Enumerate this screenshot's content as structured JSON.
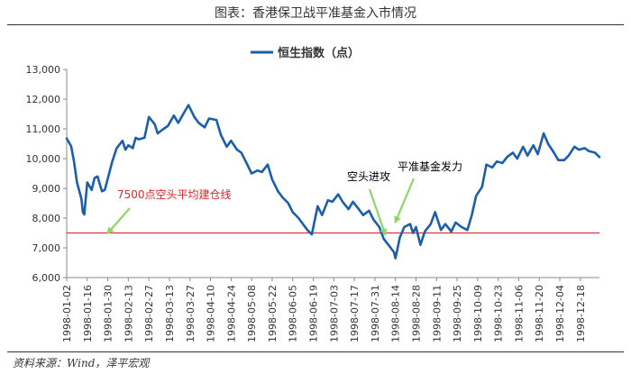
{
  "figure_title": "图表：香港保卫战平准基金入市情况",
  "source": "资料来源：Wind，泽平宏观",
  "chart_data": {
    "type": "line",
    "title": "",
    "xlabel": "",
    "ylabel": "",
    "ylim": [
      6000,
      13000
    ],
    "yticks": [
      6000,
      7000,
      8000,
      9000,
      10000,
      11000,
      12000,
      13000
    ],
    "ytick_labels": [
      "6,000",
      "7,000",
      "8,000",
      "9,000",
      "10,000",
      "11,000",
      "12,000",
      "13,000"
    ],
    "xlim": [
      "1998-01-02",
      "1998-12-31"
    ],
    "xticks": [
      "1998-01-02",
      "1998-01-16",
      "1998-01-30",
      "1998-02-13",
      "1998-02-27",
      "1998-03-13",
      "1998-03-27",
      "1998-04-10",
      "1998-04-24",
      "1998-05-08",
      "1998-05-22",
      "1998-06-05",
      "1998-06-19",
      "1998-07-03",
      "1998-07-17",
      "1998-07-31",
      "1998-08-14",
      "1998-08-28",
      "1998-09-11",
      "1998-09-25",
      "1998-10-09",
      "1998-10-23",
      "1998-11-06",
      "1998-11-20",
      "1998-12-04",
      "1998-12-18"
    ],
    "grid": false,
    "legend_position": "top-center",
    "series": [
      {
        "name": "恒生指数（点）",
        "color": "#1a5fa8",
        "x": [
          "1998-01-02",
          "1998-01-05",
          "1998-01-07",
          "1998-01-09",
          "1998-01-12",
          "1998-01-13",
          "1998-01-14",
          "1998-01-16",
          "1998-01-19",
          "1998-01-21",
          "1998-01-23",
          "1998-01-26",
          "1998-01-28",
          "1998-02-02",
          "1998-02-05",
          "1998-02-09",
          "1998-02-11",
          "1998-02-13",
          "1998-02-16",
          "1998-02-18",
          "1998-02-20",
          "1998-02-24",
          "1998-02-27",
          "1998-03-03",
          "1998-03-05",
          "1998-03-09",
          "1998-03-12",
          "1998-03-16",
          "1998-03-19",
          "1998-03-23",
          "1998-03-26",
          "1998-03-30",
          "1998-04-02",
          "1998-04-06",
          "1998-04-09",
          "1998-04-14",
          "1998-04-17",
          "1998-04-21",
          "1998-04-24",
          "1998-04-28",
          "1998-05-01",
          "1998-05-05",
          "1998-05-08",
          "1998-05-12",
          "1998-05-15",
          "1998-05-19",
          "1998-05-22",
          "1998-05-26",
          "1998-05-29",
          "1998-06-02",
          "1998-06-05",
          "1998-06-09",
          "1998-06-12",
          "1998-06-15",
          "1998-06-18",
          "1998-06-22",
          "1998-06-25",
          "1998-06-29",
          "1998-07-02",
          "1998-07-06",
          "1998-07-09",
          "1998-07-13",
          "1998-07-16",
          "1998-07-20",
          "1998-07-23",
          "1998-07-27",
          "1998-07-30",
          "1998-08-03",
          "1998-08-06",
          "1998-08-10",
          "1998-08-13",
          "1998-08-14",
          "1998-08-17",
          "1998-08-20",
          "1998-08-24",
          "1998-08-26",
          "1998-08-28",
          "1998-08-31",
          "1998-09-03",
          "1998-09-07",
          "1998-09-10",
          "1998-09-14",
          "1998-09-17",
          "1998-09-21",
          "1998-09-24",
          "1998-09-28",
          "1998-10-02",
          "1998-10-05",
          "1998-10-08",
          "1998-10-12",
          "1998-10-15",
          "1998-10-19",
          "1998-10-22",
          "1998-10-26",
          "1998-10-29",
          "1998-11-02",
          "1998-11-05",
          "1998-11-09",
          "1998-11-12",
          "1998-11-16",
          "1998-11-19",
          "1998-11-23",
          "1998-11-26",
          "1998-11-30",
          "1998-12-03",
          "1998-12-07",
          "1998-12-10",
          "1998-12-14",
          "1998-12-17",
          "1998-12-21",
          "1998-12-24",
          "1998-12-28",
          "1998-12-31"
        ],
        "y": [
          10680,
          10420,
          9900,
          9200,
          8650,
          8200,
          8120,
          9200,
          8950,
          9350,
          9400,
          8900,
          8950,
          9900,
          10350,
          10600,
          10300,
          10450,
          10350,
          10700,
          10650,
          10700,
          11400,
          11150,
          10850,
          11000,
          11100,
          11450,
          11200,
          11550,
          11800,
          11400,
          11200,
          11050,
          11350,
          11300,
          10800,
          10400,
          10600,
          10300,
          10200,
          9800,
          9500,
          9600,
          9550,
          9800,
          9300,
          8900,
          8700,
          8500,
          8200,
          8000,
          7800,
          7600,
          7450,
          8400,
          8100,
          8600,
          8550,
          8800,
          8550,
          8300,
          8550,
          8300,
          8100,
          8250,
          7950,
          7700,
          7300,
          7050,
          6850,
          6650,
          7350,
          7700,
          7800,
          7500,
          7700,
          7100,
          7550,
          7800,
          8200,
          7600,
          7800,
          7550,
          7850,
          7700,
          7600,
          8100,
          8750,
          9050,
          9800,
          9700,
          9900,
          9850,
          10050,
          10200,
          10000,
          10400,
          10100,
          10450,
          10150,
          10850,
          10500,
          10200,
          9950,
          9950,
          10100,
          10400,
          10300,
          10350,
          10250,
          10200,
          10050
        ]
      }
    ],
    "hline": {
      "value": 7500,
      "color": "#d9363e"
    },
    "annotations": [
      {
        "text": "7500点空头平均建仓线",
        "color": "#e0242b",
        "target": {
          "x": "1998-01-30",
          "y": 7500
        }
      },
      {
        "text": "空头进攻",
        "color": "#000000",
        "target": {
          "x": "1998-08-07",
          "y": 7450
        }
      },
      {
        "text": "平准基金发力",
        "color": "#000000",
        "target": {
          "x": "1998-08-14",
          "y": 7870
        }
      }
    ]
  }
}
